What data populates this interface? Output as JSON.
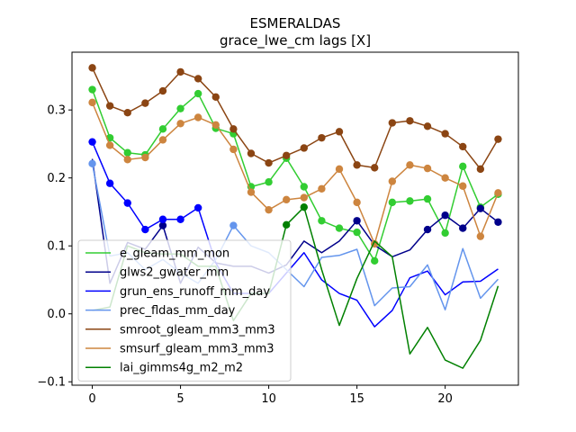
{
  "chart_data": {
    "type": "line",
    "title": "ESMERALDAS",
    "subtitle": "grace_lwe_cm lags [X]",
    "xlabel": "",
    "ylabel": "",
    "xlim": [
      -1.15,
      24.15
    ],
    "ylim": [
      -0.105,
      0.385
    ],
    "xticks": [
      0,
      5,
      10,
      15,
      20
    ],
    "yticks": [
      -0.1,
      0.0,
      0.1,
      0.2,
      0.3
    ],
    "ytick_labels": [
      "−0.1",
      "0.0",
      "0.1",
      "0.2",
      "0.3"
    ],
    "grid": false,
    "legend_position": "lower-left",
    "x": [
      0,
      1,
      2,
      3,
      4,
      5,
      6,
      7,
      8,
      9,
      10,
      11,
      12,
      13,
      14,
      15,
      16,
      17,
      18,
      19,
      20,
      21,
      22,
      23
    ],
    "series": [
      {
        "name": "e_gleam_mm_mon",
        "color": "#32cd32",
        "values": [
          0.33,
          0.259,
          0.237,
          0.234,
          0.272,
          0.302,
          0.324,
          0.273,
          0.265,
          0.187,
          0.194,
          0.229,
          0.187,
          0.137,
          0.126,
          0.12,
          0.078,
          0.164,
          0.166,
          0.169,
          0.119,
          0.217,
          0.157,
          0.176
        ],
        "markers": [
          0,
          1,
          2,
          3,
          4,
          5,
          6,
          7,
          8,
          9,
          10,
          11,
          12,
          13,
          14,
          15,
          16,
          17,
          18,
          19,
          20,
          21,
          22,
          23
        ]
      },
      {
        "name": "glws2_gwater_mm",
        "color": "#00008b",
        "values": [
          0.228,
          0.045,
          0.105,
          0.095,
          0.13,
          0.045,
          0.098,
          0.075,
          0.07,
          0.07,
          0.06,
          0.072,
          0.107,
          0.09,
          0.107,
          0.137,
          0.101,
          0.084,
          0.094,
          0.124,
          0.145,
          0.126,
          0.155,
          0.135
        ],
        "markers": [
          4,
          15,
          19,
          20,
          21,
          22,
          23
        ]
      },
      {
        "name": "grun_ens_runoff_mm_day",
        "color": "#0000ff",
        "values": [
          0.253,
          0.192,
          0.163,
          0.124,
          0.139,
          0.139,
          0.156,
          0.075,
          0.03,
          0.03,
          0.03,
          0.06,
          0.09,
          0.05,
          0.03,
          0.02,
          -0.019,
          0.005,
          0.053,
          0.063,
          0.028,
          0.047,
          0.048,
          0.066
        ],
        "markers": [
          0,
          1,
          2,
          3,
          4,
          5,
          6
        ]
      },
      {
        "name": "prec_fldas_mm_day",
        "color": "#6495ed",
        "values": [
          0.221,
          0.085,
          0.09,
          0.065,
          0.08,
          0.06,
          0.045,
          0.08,
          0.13,
          0.1,
          0.09,
          0.065,
          0.04,
          0.083,
          0.086,
          0.095,
          0.012,
          0.038,
          0.04,
          0.072,
          0.006,
          0.096,
          0.023,
          0.051
        ],
        "markers": [
          0,
          8
        ]
      },
      {
        "name": "smroot_gleam_mm3_mm3",
        "color": "#8b4513",
        "values": [
          0.362,
          0.306,
          0.296,
          0.31,
          0.328,
          0.356,
          0.346,
          0.319,
          0.272,
          0.236,
          0.222,
          0.233,
          0.244,
          0.259,
          0.268,
          0.219,
          0.215,
          0.281,
          0.284,
          0.276,
          0.265,
          0.246,
          0.213,
          0.257
        ],
        "markers": [
          0,
          1,
          2,
          3,
          4,
          5,
          6,
          7,
          8,
          9,
          10,
          11,
          12,
          13,
          14,
          15,
          16,
          17,
          18,
          19,
          20,
          21,
          22,
          23
        ]
      },
      {
        "name": "smsurf_gleam_mm3_mm3",
        "color": "#cd853f",
        "values": [
          0.311,
          0.248,
          0.227,
          0.23,
          0.256,
          0.28,
          0.289,
          0.278,
          0.242,
          0.179,
          0.153,
          0.168,
          0.171,
          0.184,
          0.213,
          0.164,
          0.103,
          0.195,
          0.219,
          0.214,
          0.2,
          0.188,
          0.114,
          0.178
        ],
        "markers": [
          0,
          1,
          2,
          3,
          4,
          5,
          6,
          7,
          8,
          9,
          10,
          11,
          12,
          13,
          14,
          15,
          16,
          17,
          18,
          19,
          20,
          21,
          22,
          23
        ]
      },
      {
        "name": "lai_gimms4g_m2_m2",
        "color": "#008000",
        "values": [
          0.005,
          0.01,
          0.1,
          0.09,
          0.088,
          0.088,
          0.07,
          0.07,
          -0.01,
          0.03,
          0.03,
          0.131,
          0.157,
          0.065,
          -0.017,
          0.052,
          0.107,
          0.084,
          -0.059,
          -0.02,
          -0.068,
          -0.08,
          -0.039,
          0.041
        ],
        "markers": [
          11,
          12
        ]
      }
    ]
  }
}
